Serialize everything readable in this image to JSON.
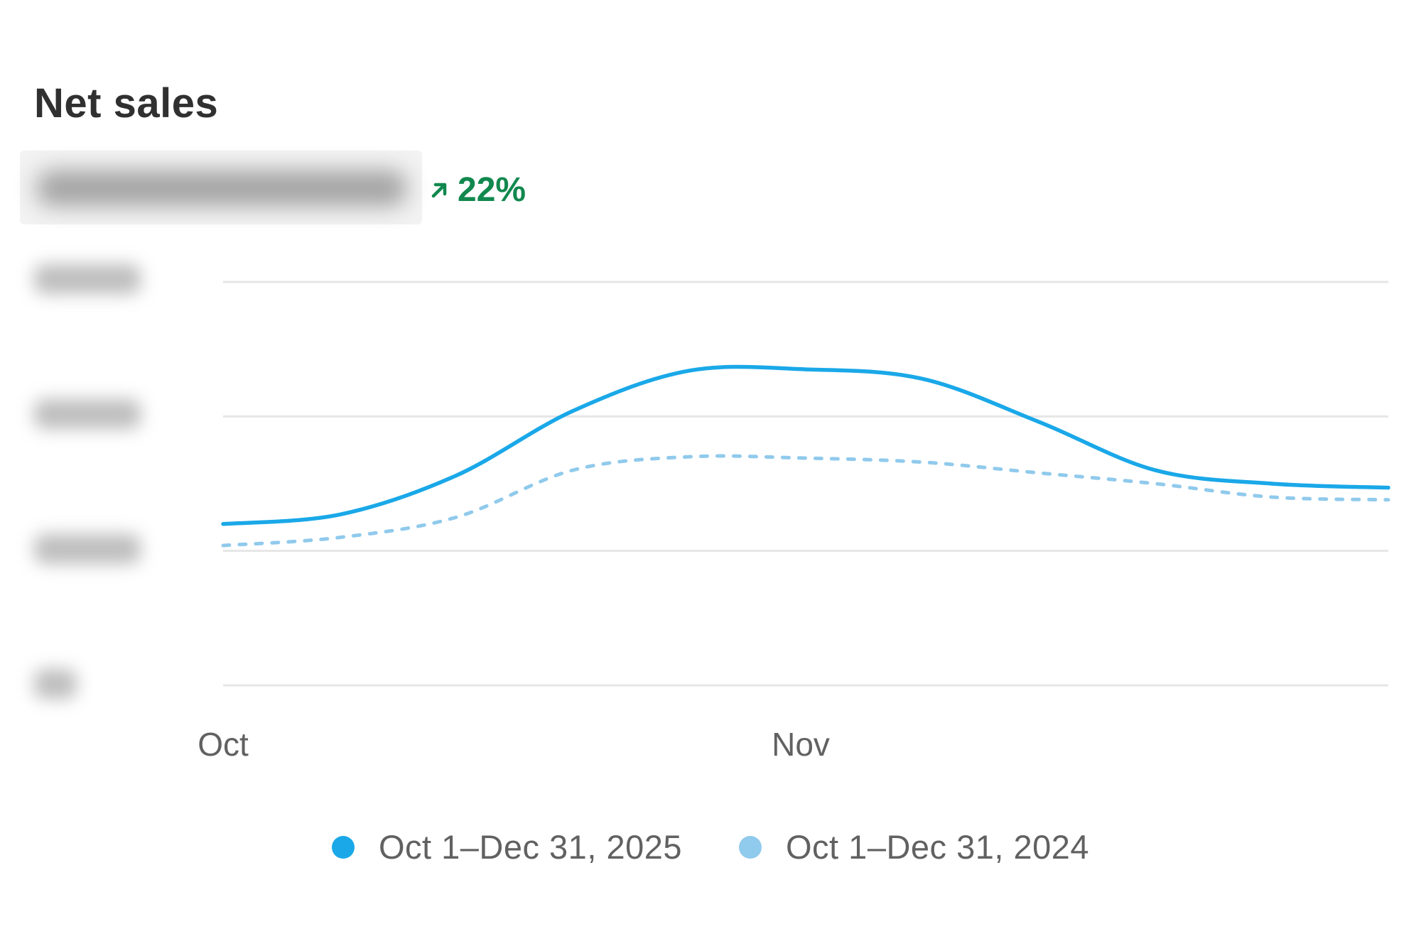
{
  "card": {
    "title": "Net sales",
    "change": {
      "text": "22%",
      "direction": "up",
      "color": "#11884e",
      "icon": "arrow-up-right-icon"
    }
  },
  "chart_data": {
    "type": "line",
    "title": "",
    "xlabel": "",
    "ylabel": "",
    "grid": true,
    "legend_position": "bottom-center",
    "x_ticks": [
      "Oct",
      "Nov"
    ],
    "x": [
      0,
      0.1,
      0.2,
      0.3,
      0.4,
      0.5,
      0.6,
      0.7,
      0.8,
      0.9,
      1.0
    ],
    "y_ticks_visible": false,
    "ylim": [
      0,
      3
    ],
    "series": [
      {
        "name": "Oct 1–Dec 31, 2025",
        "color": "#1aa8e8",
        "dash": "solid",
        "values": [
          1.2,
          1.27,
          1.56,
          2.04,
          2.34,
          2.35,
          2.28,
          1.96,
          1.6,
          1.5,
          1.47
        ]
      },
      {
        "name": "Oct 1–Dec 31, 2024",
        "color": "#90caec",
        "dash": "dotted",
        "values": [
          1.04,
          1.1,
          1.25,
          1.6,
          1.7,
          1.69,
          1.66,
          1.58,
          1.5,
          1.4,
          1.38
        ]
      }
    ]
  }
}
